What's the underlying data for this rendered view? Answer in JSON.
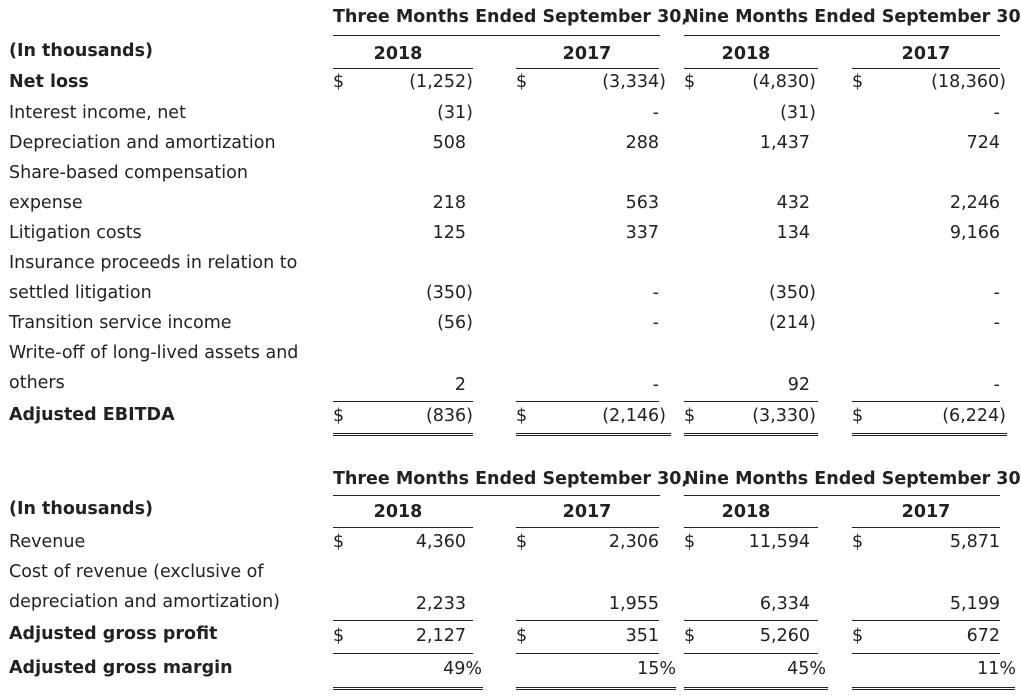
{
  "table1": {
    "period_headers": [
      "Three Months Ended September 30,",
      "Nine Months Ended September 30,"
    ],
    "unit_label": "(In thousands)",
    "years": [
      "2018",
      "2017",
      "2018",
      "2017"
    ],
    "rows": [
      {
        "label": [
          "Net loss"
        ],
        "bold": true,
        "dollar": true,
        "values": [
          "(1,252)",
          "(3,334)",
          "(4,830)",
          "(18,360)"
        ]
      },
      {
        "label": [
          "Interest income, net"
        ],
        "values": [
          "(31)",
          "-",
          "(31)",
          "-"
        ]
      },
      {
        "label": [
          "Depreciation and amortization"
        ],
        "values": [
          "508",
          "288",
          "1,437",
          "724"
        ]
      },
      {
        "label": [
          "Share-based compensation",
          "expense"
        ],
        "values": [
          "218",
          "563",
          "432",
          "2,246"
        ]
      },
      {
        "label": [
          "Litigation costs"
        ],
        "values": [
          "125",
          "337",
          "134",
          "9,166"
        ]
      },
      {
        "label": [
          "Insurance proceeds in relation to",
          "settled litigation"
        ],
        "values": [
          "(350)",
          "-",
          "(350)",
          "-"
        ]
      },
      {
        "label": [
          "Transition service income"
        ],
        "values": [
          "(56)",
          "-",
          "(214)",
          "-"
        ]
      },
      {
        "label": [
          "Write-off of long-lived assets and",
          "others"
        ],
        "values": [
          "2",
          "-",
          "92",
          "-"
        ]
      },
      {
        "label": [
          "Adjusted EBITDA"
        ],
        "bold": true,
        "dollar": true,
        "values": [
          "(836)",
          "(2,146)",
          "(3,330)",
          "(6,224)"
        ]
      }
    ],
    "currency_symbol": "$"
  },
  "table2": {
    "period_headers": [
      "Three Months Ended September 30,",
      "Nine Months Ended September 30,"
    ],
    "unit_label": "(In thousands)",
    "years": [
      "2018",
      "2017",
      "2018",
      "2017"
    ],
    "rows": [
      {
        "label": [
          "Revenue"
        ],
        "dollar": true,
        "values": [
          "4,360",
          "2,306",
          "11,594",
          "5,871"
        ]
      },
      {
        "label": [
          "Cost of revenue (exclusive of",
          "depreciation and amortization)"
        ],
        "values": [
          "2,233",
          "1,955",
          "6,334",
          "5,199"
        ]
      },
      {
        "label": [
          "Adjusted gross profit"
        ],
        "bold": true,
        "dollar": true,
        "values": [
          "2,127",
          "351",
          "5,260",
          "672"
        ]
      },
      {
        "label": [
          "Adjusted gross margin"
        ],
        "bold": true,
        "values": [
          "49%",
          "15%",
          "45%",
          "11%"
        ]
      }
    ],
    "currency_symbol": "$"
  }
}
